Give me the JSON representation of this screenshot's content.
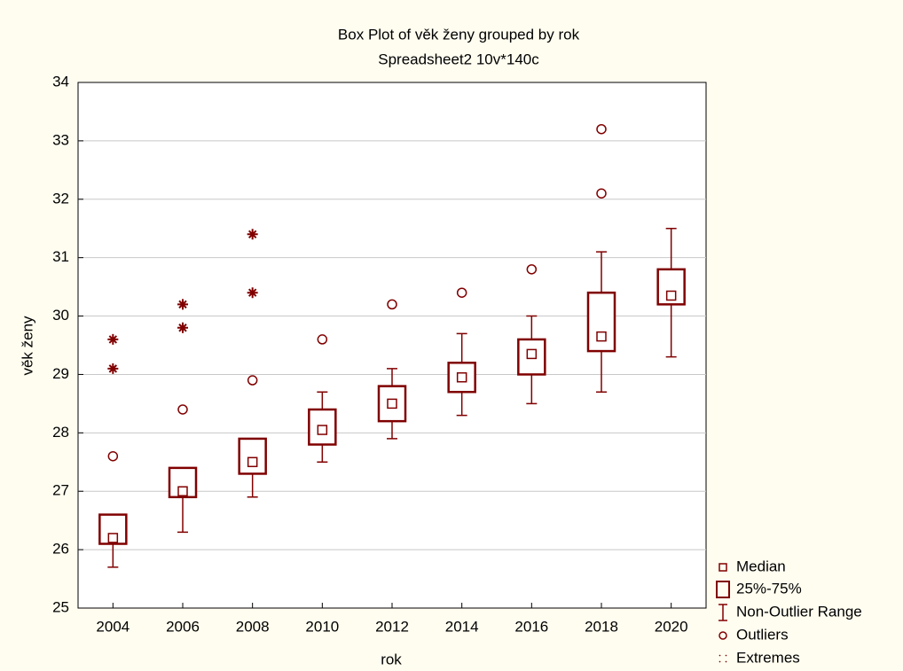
{
  "chart_data": {
    "type": "boxplot",
    "title": "Box Plot of věk ženy grouped by  rok",
    "subtitle": "Spreadsheet2 10v*140c",
    "x_label": "rok",
    "y_label": "věk ženy",
    "categories": [
      "2004",
      "2006",
      "2008",
      "2010",
      "2012",
      "2014",
      "2016",
      "2018",
      "2020"
    ],
    "median": [
      26.2,
      27.0,
      27.5,
      28.05,
      28.5,
      28.95,
      29.35,
      29.65,
      30.35
    ],
    "q1": [
      26.1,
      26.9,
      27.3,
      27.8,
      28.2,
      28.7,
      29.0,
      29.4,
      30.2
    ],
    "q3": [
      26.6,
      27.4,
      27.9,
      28.4,
      28.8,
      29.2,
      29.6,
      30.4,
      30.8
    ],
    "whisker_low": [
      25.7,
      26.3,
      26.9,
      27.5,
      27.9,
      28.3,
      28.5,
      28.7,
      29.3
    ],
    "whisker_high": [
      26.6,
      27.4,
      27.9,
      28.7,
      29.1,
      29.7,
      30.0,
      31.1,
      31.5
    ],
    "outliers": [
      [
        27.6
      ],
      [
        28.4
      ],
      [
        28.9
      ],
      [
        29.6
      ],
      [
        30.2
      ],
      [
        30.4
      ],
      [
        30.8
      ],
      [
        32.1,
        33.2
      ],
      []
    ],
    "extremes": [
      [
        29.1,
        29.6
      ],
      [
        29.8,
        30.2
      ],
      [
        30.4,
        31.4
      ],
      [],
      [],
      [],
      [],
      [],
      []
    ],
    "ylim": [
      25,
      34
    ],
    "yticks": [
      25,
      26,
      27,
      28,
      29,
      30,
      31,
      32,
      33,
      34
    ],
    "grid": true,
    "color": "#800000",
    "legend": [
      "Median",
      "25%-75%",
      "Non-Outlier Range",
      "Outliers",
      "Extremes"
    ]
  }
}
